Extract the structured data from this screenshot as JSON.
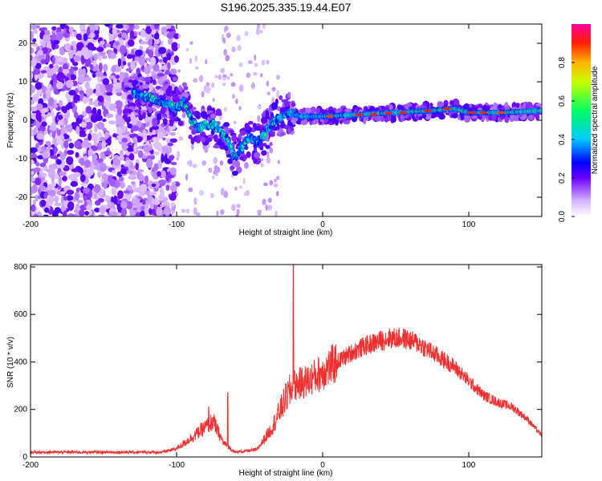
{
  "title": "S196.2025.335.19.44.E07",
  "chart_data": [
    {
      "type": "heatmap",
      "name": "spectrogram",
      "xlabel": "Height of straight line (km)",
      "ylabel": "Frequency (Hz)",
      "xlim": [
        -200,
        150
      ],
      "ylim": [
        -25,
        25
      ],
      "xticks": [
        -200,
        -100,
        0,
        100
      ],
      "yticks": [
        -20,
        -10,
        0,
        10,
        20
      ],
      "colorbar": {
        "label": "Normalized spectral amplitude",
        "range": [
          0,
          1
        ],
        "ticks": [
          "0.0",
          "0.2",
          "0.4",
          "0.6",
          "0.8"
        ],
        "tick_values": [
          0,
          0.2,
          0.4,
          0.6,
          0.8
        ]
      },
      "ridge": [
        {
          "x": -130,
          "y": 7
        },
        {
          "x": -120,
          "y": 6
        },
        {
          "x": -110,
          "y": 5
        },
        {
          "x": -100,
          "y": 3
        },
        {
          "x": -95,
          "y": 5
        },
        {
          "x": -90,
          "y": 0
        },
        {
          "x": -85,
          "y": -2
        },
        {
          "x": -75,
          "y": -1
        },
        {
          "x": -70,
          "y": -3
        },
        {
          "x": -65,
          "y": -5
        },
        {
          "x": -60,
          "y": -10
        },
        {
          "x": -50,
          "y": -4
        },
        {
          "x": -45,
          "y": -6
        },
        {
          "x": -35,
          "y": -1
        },
        {
          "x": -25,
          "y": 2
        },
        {
          "x": -15,
          "y": 1
        },
        {
          "x": 0,
          "y": 1
        },
        {
          "x": 25,
          "y": 1.5
        },
        {
          "x": 50,
          "y": 2
        },
        {
          "x": 75,
          "y": 2.5
        },
        {
          "x": 90,
          "y": 3
        },
        {
          "x": 100,
          "y": 2
        },
        {
          "x": 125,
          "y": 2
        },
        {
          "x": 150,
          "y": 2.5
        }
      ]
    },
    {
      "type": "line",
      "name": "snr",
      "xlabel": "Height of straight line (km)",
      "ylabel": "SNR (10 * v/v)",
      "xlim": [
        -200,
        150
      ],
      "ylim": [
        0,
        810
      ],
      "xticks": [
        -200,
        -100,
        0,
        100
      ],
      "yticks": [
        0,
        200,
        400,
        600,
        800
      ],
      "color": "#f03030",
      "envelope": [
        {
          "x": -200,
          "y": 20
        },
        {
          "x": -110,
          "y": 20
        },
        {
          "x": -100,
          "y": 35
        },
        {
          "x": -90,
          "y": 80
        },
        {
          "x": -75,
          "y": 150
        },
        {
          "x": -68,
          "y": 60
        },
        {
          "x": -60,
          "y": 20
        },
        {
          "x": -45,
          "y": 30
        },
        {
          "x": -35,
          "y": 120
        },
        {
          "x": -25,
          "y": 250
        },
        {
          "x": -20,
          "y": 300
        },
        {
          "x": -10,
          "y": 320
        },
        {
          "x": 0,
          "y": 360
        },
        {
          "x": 10,
          "y": 400
        },
        {
          "x": 20,
          "y": 440
        },
        {
          "x": 30,
          "y": 470
        },
        {
          "x": 45,
          "y": 500
        },
        {
          "x": 55,
          "y": 500
        },
        {
          "x": 65,
          "y": 480
        },
        {
          "x": 75,
          "y": 440
        },
        {
          "x": 90,
          "y": 380
        },
        {
          "x": 100,
          "y": 320
        },
        {
          "x": 110,
          "y": 260
        },
        {
          "x": 120,
          "y": 230
        },
        {
          "x": 130,
          "y": 210
        },
        {
          "x": 140,
          "y": 160
        },
        {
          "x": 150,
          "y": 90
        }
      ],
      "peaks": [
        {
          "x": -20,
          "y": 810
        },
        {
          "x": -65,
          "y": 270
        },
        {
          "x": -78,
          "y": 210
        }
      ]
    }
  ]
}
